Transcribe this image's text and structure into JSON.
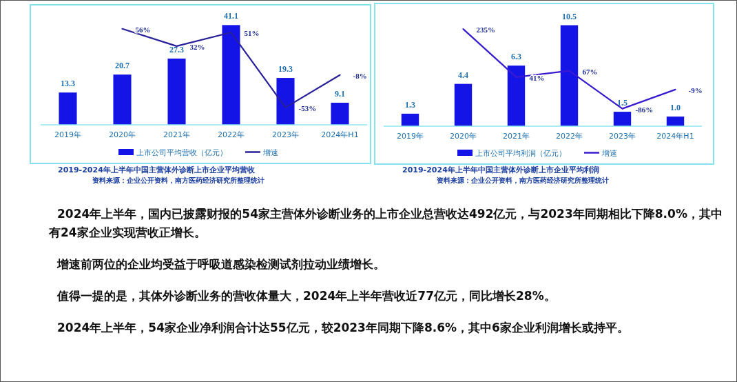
{
  "chart_data": [
    {
      "type": "bar",
      "title": "2019-2024年上半年中国主营体外诊断上市企业平均营收",
      "annotations": [
        "资料来源：企业公开资料，南方医药经济研究所整理统计"
      ],
      "categories": [
        "2019年",
        "2020年",
        "2021年",
        "2022年",
        "2023年",
        "2024年H1"
      ],
      "tick_labels": "x",
      "legend": "bottom",
      "series": [
        {
          "name": "上市公司平均营收（亿元）",
          "color": "#1414e6",
          "values": [
            13.3,
            20.7,
            27.3,
            41.1,
            19.3,
            9.1
          ],
          "value_labels": [
            "13.3",
            "20.7",
            "27.3",
            "41.1",
            "19.3",
            "9.1"
          ]
        },
        {
          "name": "增速",
          "type": "line",
          "axis": "y2",
          "color": "#28209a",
          "marker": "none",
          "line_style": "solid",
          "values": [
            null,
            56,
            32,
            51,
            -53,
            -8
          ],
          "value_labels": [
            null,
            "56%",
            "32%",
            "51%",
            "-53%",
            "-8%"
          ]
        }
      ]
    },
    {
      "type": "bar",
      "title": "2019-2024年上半年中国主营体外诊断上市企业平均利润",
      "annotations": [
        "资料来源：企业公开资料，南方医药经济研究所整理统计"
      ],
      "categories": [
        "2019年",
        "2020年",
        "2021年",
        "2022年",
        "2023年",
        "2024年H1"
      ],
      "tick_labels": "x",
      "legend": "bottom",
      "series": [
        {
          "name": "上市公司平均利润（亿元）",
          "color": "#1414e6",
          "values": [
            1.3,
            4.4,
            6.3,
            10.5,
            1.5,
            1.0
          ],
          "value_labels": [
            "1.3",
            "4.4",
            "6.3",
            "10.5",
            "1.5",
            "1.0"
          ]
        },
        {
          "name": "增速",
          "type": "line",
          "axis": "y2",
          "color": "#3a1ad0",
          "marker": "none",
          "line_style": "solid",
          "values": [
            null,
            235,
            41,
            67,
            -86,
            -9
          ],
          "value_labels": [
            null,
            "235%",
            "41%",
            "67%",
            "-86%",
            "-9%"
          ]
        }
      ]
    },
    {
      "type": "other",
      "annotations": [
        "2024年上半年，国内已披露财报的54家主营体外诊断业务的上市企业总营收达492亿元，与2023年同期相比下降8.0%，其中有24家企业实现营收正增长。",
        "增速前两位的企业均受益于呼吸道感染检测试剂拉动业绩增长。",
        "值得一提的是，其体外诊断业务的营收体量大，2024年上半年营收近77亿元，同比增长28%。",
        "2024年上半年，54家企业净利润合计达55亿元，较2023年同期下降8.6%，其中6家企业利润增长或持平。"
      ]
    }
  ]
}
